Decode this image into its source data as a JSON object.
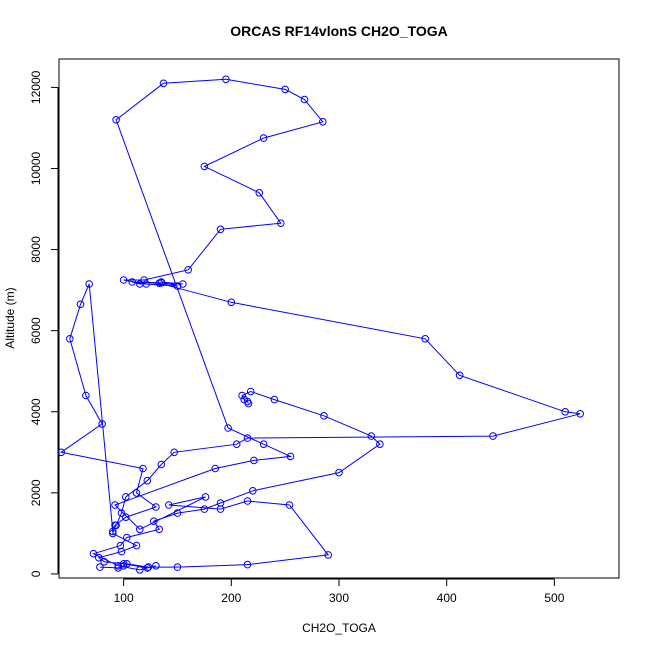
{
  "chart_data": {
    "type": "line",
    "title": "ORCAS RF14vlonS CH2O_TOGA",
    "xlabel": "CH2O_TOGA",
    "ylabel": "Altitude (m)",
    "xlim": [
      40,
      560
    ],
    "ylim": [
      -100,
      12700
    ],
    "xticks": [
      100,
      200,
      300,
      400,
      500
    ],
    "yticks": [
      0,
      2000,
      4000,
      6000,
      8000,
      10000,
      12000
    ],
    "grid": false,
    "legend": "none",
    "series_color": "#0000ff",
    "marker": "open-circle",
    "series": [
      {
        "x": [
          78,
          95,
          100,
          103,
          123,
          150,
          215,
          290,
          254,
          215,
          190,
          142,
          176,
          115,
          92,
          185,
          221,
          255,
          230,
          197,
          93,
          137,
          195,
          250,
          268,
          285,
          230,
          175,
          226,
          246,
          190,
          160,
          119,
          100,
          121,
          150,
          135,
          155,
          115,
          108,
          135,
          133,
          200,
          380,
          412,
          510,
          524,
          443,
          215,
          205,
          147,
          135,
          122,
          102,
          98,
          93,
          90,
          68,
          60,
          50,
          65,
          80,
          42,
          118,
          112,
          130,
          102,
          92,
          90,
          112,
          98,
          77,
          82,
          100,
          122,
          130,
          115,
          95,
          72,
          97,
          103,
          133,
          128,
          150,
          175,
          190,
          220,
          300,
          338,
          330,
          286,
          240,
          218,
          210,
          212,
          215,
          216
        ],
        "y": [
          170,
          150,
          200,
          250,
          170,
          170,
          230,
          470,
          1700,
          1800,
          1600,
          1700,
          1900,
          1100,
          1700,
          2600,
          2800,
          2900,
          3200,
          3600,
          11200,
          12100,
          12200,
          11950,
          11700,
          11150,
          10750,
          10050,
          9400,
          8650,
          8500,
          7500,
          7250,
          7250,
          7150,
          7100,
          7200,
          7150,
          7150,
          7200,
          7180,
          7170,
          6700,
          5800,
          4900,
          4000,
          3950,
          3400,
          3350,
          3200,
          3000,
          2700,
          2300,
          1900,
          1500,
          1200,
          1050,
          7150,
          6650,
          5800,
          4400,
          3700,
          3000,
          2600,
          2000,
          1650,
          1400,
          1200,
          1000,
          700,
          550,
          400,
          300,
          250,
          150,
          200,
          100,
          200,
          500,
          700,
          900,
          1100,
          1300,
          1500,
          1600,
          1750,
          2050,
          2500,
          3200,
          3400,
          3900,
          4300,
          4500,
          4400,
          4300,
          4250,
          4200
        ]
      }
    ]
  }
}
